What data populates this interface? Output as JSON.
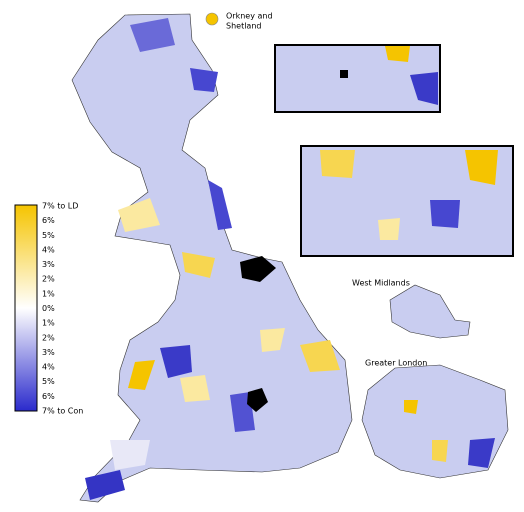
{
  "legend": {
    "labels": [
      "7% to LD",
      "6%",
      "5%",
      "4%",
      "3%",
      "2%",
      "1%",
      "0%",
      "1%",
      "2%",
      "3%",
      "4%",
      "5%",
      "6%",
      "7% to Con"
    ]
  },
  "annotations": {
    "orkney_shetland": [
      "Orkney and",
      "Shetland"
    ],
    "west_midlands": "West Midlands",
    "greater_london": "Greater London"
  }
}
